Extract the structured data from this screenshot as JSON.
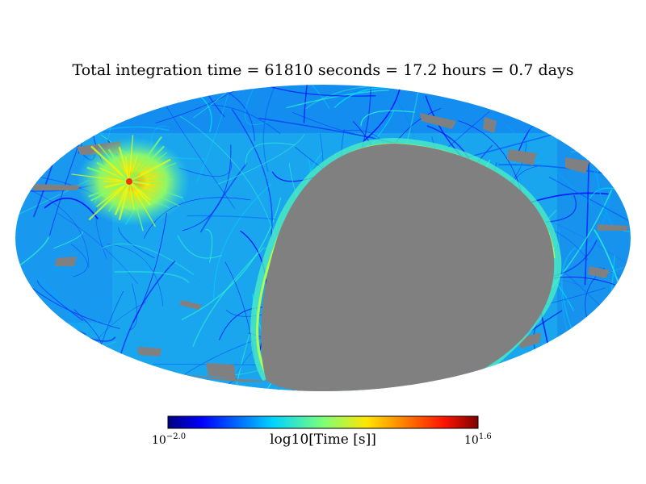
{
  "chart_data": {
    "type": "heatmap",
    "projection": "mollweide",
    "title": "Total integration time = 61810 seconds = 17.2 hours = 0.7 days",
    "total_time": {
      "seconds": "61810",
      "hours": "17.2",
      "days": "0.7"
    },
    "colorbar": {
      "label": "log10[Time [s]]",
      "min_base": "10",
      "min_exp": "−2.0",
      "max_base": "10",
      "max_exp": "1.6",
      "range_log10": [
        -2.0,
        1.6
      ],
      "colormap": "jet"
    },
    "unobserved_color": "#808080",
    "background_color": "#ffffff"
  }
}
